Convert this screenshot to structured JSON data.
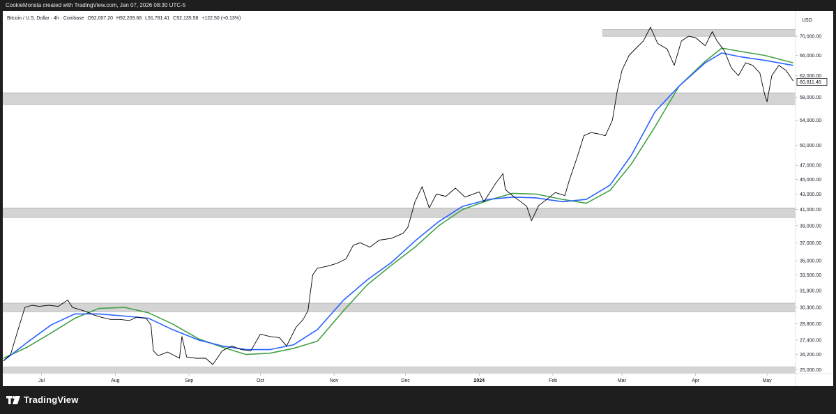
{
  "header": {
    "caption": "CookieMonsta created with TradingView.com, Jan 07, 2026 08:30 UTC-5"
  },
  "symbol_line": {
    "name": "Bitcoin / U.S. Dollar · 4h · Coinbase",
    "open": "O92,007.20",
    "high": "H92,209.68",
    "low": "L91,781.41",
    "close": "C92,135.58",
    "change": "+122.50 (+0.13%)"
  },
  "footer": {
    "brand": "TradingView"
  },
  "colors": {
    "price": "#000000",
    "ma_fast": "#2962ff",
    "ma_slow": "#43a047",
    "zone": "#d4d4d4",
    "frame": "#1e1e1e"
  },
  "chart_data": {
    "type": "line",
    "title": "Bitcoin / U.S. Dollar · 4h · Coinbase",
    "currency_label": "USD",
    "y_scale": "log",
    "ylim": [
      24700,
      75500
    ],
    "last_price_label": "60,811.46",
    "y_ticks": [
      {
        "value": 70000,
        "label": "70,000.00"
      },
      {
        "value": 66000,
        "label": "66,000.00"
      },
      {
        "value": 62000,
        "label": "62,000.00"
      },
      {
        "value": 58000,
        "label": "58,000.00"
      },
      {
        "value": 54000,
        "label": "54,000.00"
      },
      {
        "value": 50000,
        "label": "50,000.00"
      },
      {
        "value": 47000,
        "label": "47,000.00"
      },
      {
        "value": 45000,
        "label": "45,000.00"
      },
      {
        "value": 43000,
        "label": "43,000.00"
      },
      {
        "value": 41000,
        "label": "41,000.00"
      },
      {
        "value": 39000,
        "label": "39,000.00"
      },
      {
        "value": 37000,
        "label": "37,000.00"
      },
      {
        "value": 35000,
        "label": "35,000.00"
      },
      {
        "value": 33500,
        "label": "33,500.00"
      },
      {
        "value": 31900,
        "label": "31,900.00"
      },
      {
        "value": 30300,
        "label": "30,300.00"
      },
      {
        "value": 28800,
        "label": "28,800.00"
      },
      {
        "value": 27400,
        "label": "27,400.00"
      },
      {
        "value": 26200,
        "label": "26,200.00"
      },
      {
        "value": 25000,
        "label": "25,000.00"
      }
    ],
    "x_ticks": [
      {
        "date": "2023-07-01",
        "label": "Jul",
        "bold": false
      },
      {
        "date": "2023-08-01",
        "label": "Aug",
        "bold": false
      },
      {
        "date": "2023-09-01",
        "label": "Sep",
        "bold": false
      },
      {
        "date": "2023-10-01",
        "label": "Oct",
        "bold": false
      },
      {
        "date": "2023-11-01",
        "label": "Nov",
        "bold": false
      },
      {
        "date": "2023-12-01",
        "label": "Dec",
        "bold": false
      },
      {
        "date": "2024-01-01",
        "label": "2024",
        "bold": true
      },
      {
        "date": "2024-02-01",
        "label": "Feb",
        "bold": false
      },
      {
        "date": "2024-03-01",
        "label": "Mar",
        "bold": false
      },
      {
        "date": "2024-04-01",
        "label": "Apr",
        "bold": false
      },
      {
        "date": "2024-05-01",
        "label": "May",
        "bold": false
      }
    ],
    "xlim": [
      "2023-06-15",
      "2024-05-13"
    ],
    "zones": [
      {
        "from": 70000,
        "to": 71500,
        "start": "2024-02-22"
      },
      {
        "from": 56700,
        "to": 58800,
        "start": "2023-06-15"
      },
      {
        "from": 40000,
        "to": 41200,
        "start": "2023-06-15"
      },
      {
        "from": 29900,
        "to": 30700,
        "start": "2023-06-15"
      },
      {
        "from": 24700,
        "to": 25200,
        "start": "2023-06-15"
      }
    ],
    "series": [
      {
        "type": "price",
        "x": [
          "2023-06-15",
          "2023-06-18",
          "2023-06-21",
          "2023-06-24",
          "2023-06-27",
          "2023-06-30",
          "2023-07-04",
          "2023-07-08",
          "2023-07-12",
          "2023-07-14",
          "2023-07-17",
          "2023-07-20",
          "2023-07-23",
          "2023-07-26",
          "2023-07-30",
          "2023-08-03",
          "2023-08-07",
          "2023-08-10",
          "2023-08-14",
          "2023-08-16",
          "2023-08-17",
          "2023-08-19",
          "2023-08-23",
          "2023-08-28",
          "2023-08-29",
          "2023-08-31",
          "2023-09-04",
          "2023-09-08",
          "2023-09-11",
          "2023-09-15",
          "2023-09-19",
          "2023-09-23",
          "2023-09-27",
          "2023-10-01",
          "2023-10-05",
          "2023-10-09",
          "2023-10-12",
          "2023-10-16",
          "2023-10-19",
          "2023-10-21",
          "2023-10-23",
          "2023-10-25",
          "2023-10-29",
          "2023-11-02",
          "2023-11-06",
          "2023-11-09",
          "2023-11-12",
          "2023-11-16",
          "2023-11-20",
          "2023-11-25",
          "2023-11-30",
          "2023-12-02",
          "2023-12-05",
          "2023-12-08",
          "2023-12-11",
          "2023-12-14",
          "2023-12-18",
          "2023-12-22",
          "2023-12-26",
          "2024-01-01",
          "2024-01-03",
          "2024-01-08",
          "2024-01-11",
          "2024-01-12",
          "2024-01-15",
          "2024-01-18",
          "2024-01-21",
          "2024-01-23",
          "2024-01-26",
          "2024-01-29",
          "2024-02-02",
          "2024-02-06",
          "2024-02-08",
          "2024-02-11",
          "2024-02-14",
          "2024-02-17",
          "2024-02-20",
          "2024-02-23",
          "2024-02-26",
          "2024-02-28",
          "2024-03-01",
          "2024-03-04",
          "2024-03-07",
          "2024-03-10",
          "2024-03-13",
          "2024-03-16",
          "2024-03-20",
          "2024-03-23",
          "2024-03-26",
          "2024-03-29",
          "2024-04-01",
          "2024-04-05",
          "2024-04-08",
          "2024-04-10",
          "2024-04-13",
          "2024-04-16",
          "2024-04-19",
          "2024-04-22",
          "2024-04-25",
          "2024-04-28",
          "2024-04-30",
          "2024-05-01",
          "2024-05-03",
          "2024-05-06",
          "2024-05-09",
          "2024-05-12"
        ],
        "values": [
          25700,
          26200,
          28200,
          30300,
          30500,
          30400,
          30500,
          30400,
          31000,
          30300,
          30100,
          29900,
          29600,
          29400,
          29200,
          29200,
          29100,
          29400,
          29300,
          28700,
          26500,
          26100,
          26400,
          25900,
          27700,
          26000,
          25900,
          25900,
          25400,
          26500,
          26900,
          26600,
          26500,
          27900,
          27700,
          27600,
          26900,
          28500,
          29200,
          30000,
          33500,
          34200,
          34400,
          34700,
          35200,
          36700,
          37000,
          36500,
          37300,
          37500,
          38100,
          38800,
          42000,
          44000,
          41200,
          43000,
          42700,
          43800,
          42600,
          43300,
          42000,
          44500,
          45800,
          43600,
          42800,
          42100,
          41400,
          39600,
          41500,
          42200,
          43200,
          42800,
          45000,
          48000,
          51500,
          52000,
          51800,
          51500,
          54000,
          59000,
          63000,
          66000,
          67500,
          69000,
          72000,
          68500,
          67300,
          64000,
          69000,
          70000,
          69700,
          68000,
          71000,
          69000,
          67000,
          63500,
          62000,
          64500,
          64000,
          62500,
          58500,
          57200,
          62000,
          64000,
          63000,
          61000
        ]
      },
      {
        "type": "ma_fast",
        "x": [
          "2023-06-15",
          "2023-06-25",
          "2023-07-05",
          "2023-07-15",
          "2023-07-25",
          "2023-08-05",
          "2023-08-15",
          "2023-08-25",
          "2023-09-05",
          "2023-09-15",
          "2023-09-25",
          "2023-10-05",
          "2023-10-15",
          "2023-10-25",
          "2023-11-05",
          "2023-11-15",
          "2023-11-25",
          "2023-12-05",
          "2023-12-15",
          "2023-12-25",
          "2024-01-05",
          "2024-01-15",
          "2024-01-25",
          "2024-02-05",
          "2024-02-15",
          "2024-02-25",
          "2024-03-05",
          "2024-03-15",
          "2024-03-25",
          "2024-04-05",
          "2024-04-12",
          "2024-04-20",
          "2024-04-30",
          "2024-05-12"
        ],
        "values": [
          25700,
          27200,
          28700,
          29700,
          29700,
          29500,
          29300,
          28300,
          27400,
          26900,
          26600,
          26600,
          27000,
          28300,
          31000,
          33000,
          34800,
          37200,
          39500,
          41400,
          42300,
          42600,
          42500,
          42000,
          42300,
          44200,
          48500,
          55500,
          60000,
          64500,
          66500,
          65700,
          65000,
          64000
        ]
      },
      {
        "type": "ma_slow",
        "x": [
          "2023-06-15",
          "2023-06-25",
          "2023-07-05",
          "2023-07-15",
          "2023-07-25",
          "2023-08-05",
          "2023-08-15",
          "2023-08-25",
          "2023-09-05",
          "2023-09-15",
          "2023-09-25",
          "2023-10-05",
          "2023-10-15",
          "2023-10-25",
          "2023-11-05",
          "2023-11-15",
          "2023-11-25",
          "2023-12-05",
          "2023-12-15",
          "2023-12-25",
          "2024-01-05",
          "2024-01-15",
          "2024-01-25",
          "2024-02-05",
          "2024-02-15",
          "2024-02-25",
          "2024-03-05",
          "2024-03-15",
          "2024-03-25",
          "2024-04-05",
          "2024-04-12",
          "2024-04-20",
          "2024-04-30",
          "2024-05-12"
        ],
        "values": [
          25900,
          26800,
          28000,
          29300,
          30200,
          30300,
          29800,
          28800,
          27500,
          26800,
          26200,
          26300,
          26700,
          27300,
          30000,
          32500,
          34500,
          36500,
          39000,
          41000,
          42200,
          43100,
          43000,
          42300,
          41800,
          43500,
          47200,
          53000,
          60000,
          64800,
          67500,
          66800,
          66000,
          64500
        ]
      }
    ]
  }
}
